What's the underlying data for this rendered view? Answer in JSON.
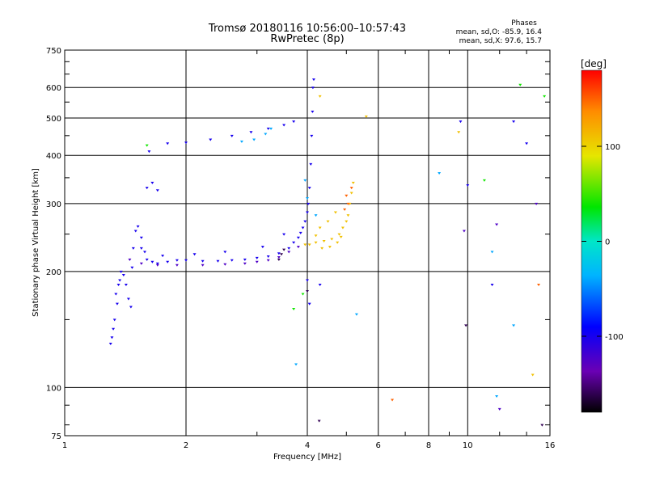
{
  "chart_data": {
    "type": "scatter",
    "title": "Tromsø 20180116 10:56:00–10:57:43",
    "subtitle": "RwPretec (8p)",
    "xlabel": "Frequency [MHz]",
    "ylabel": "Stationary phase Virtual Height [km]",
    "xscale": "log",
    "yscale": "log",
    "xlim": [
      1,
      16
    ],
    "ylim": [
      75,
      750
    ],
    "xticks": [
      1,
      2,
      4,
      6,
      8,
      10,
      16
    ],
    "xtick_labels": [
      "1",
      "2",
      "4",
      "6",
      "8",
      "10",
      "16"
    ],
    "yticks": [
      75,
      100,
      200,
      300,
      400,
      500,
      600,
      750
    ],
    "ytick_labels": [
      "75",
      "100",
      "200",
      "300",
      "400",
      "500",
      "600",
      "750"
    ],
    "grid": true,
    "phases": {
      "heading": "Phases",
      "o_line": "mean, sd,O: -85.9, 16.4",
      "x_line": "mean, sd,X:  97.6, 15.7"
    },
    "colorbar": {
      "label": "[deg]",
      "range": [
        -180,
        180
      ],
      "ticks": [
        -100,
        0,
        100
      ],
      "tick_labels": [
        "-100",
        "0",
        "100"
      ],
      "colormap": "rainbow"
    },
    "series": [
      {
        "phase": -100,
        "points": [
          [
            1.3,
            130
          ],
          [
            1.31,
            135
          ],
          [
            1.32,
            142
          ],
          [
            1.33,
            150
          ],
          [
            1.35,
            165
          ],
          [
            1.34,
            175
          ],
          [
            1.36,
            185
          ],
          [
            1.37,
            190
          ],
          [
            1.38,
            200
          ],
          [
            1.4,
            196
          ],
          [
            1.42,
            185
          ],
          [
            1.44,
            170
          ],
          [
            1.46,
            162
          ],
          [
            1.47,
            205
          ],
          [
            1.48,
            230
          ],
          [
            1.5,
            255
          ],
          [
            1.52,
            262
          ],
          [
            1.55,
            245
          ],
          [
            1.58,
            225
          ],
          [
            1.6,
            215
          ],
          [
            1.65,
            212
          ],
          [
            1.7,
            210
          ],
          [
            1.8,
            212
          ],
          [
            1.9,
            214
          ],
          [
            2.0,
            214
          ],
          [
            2.2,
            213
          ],
          [
            2.4,
            213
          ],
          [
            2.6,
            214
          ],
          [
            2.8,
            215
          ],
          [
            3.0,
            217
          ],
          [
            3.2,
            219
          ],
          [
            3.4,
            223
          ],
          [
            3.6,
            230
          ],
          [
            3.7,
            238
          ],
          [
            3.8,
            245
          ],
          [
            3.85,
            252
          ],
          [
            3.9,
            260
          ],
          [
            3.95,
            270
          ],
          [
            4.0,
            285
          ],
          [
            4.02,
            300
          ],
          [
            4.05,
            330
          ],
          [
            4.08,
            380
          ],
          [
            4.1,
            450
          ],
          [
            4.12,
            520
          ],
          [
            4.13,
            600
          ],
          [
            4.15,
            630
          ],
          [
            1.6,
            330
          ],
          [
            1.65,
            340
          ],
          [
            1.7,
            325
          ],
          [
            1.62,
            410
          ],
          [
            1.8,
            430
          ],
          [
            2.0,
            432
          ],
          [
            2.3,
            440
          ],
          [
            2.6,
            450
          ],
          [
            2.9,
            460
          ],
          [
            3.2,
            470
          ],
          [
            3.5,
            480
          ],
          [
            3.7,
            490
          ],
          [
            1.55,
            230
          ],
          [
            1.75,
            220
          ],
          [
            2.1,
            222
          ],
          [
            2.5,
            225
          ],
          [
            3.1,
            232
          ],
          [
            3.5,
            250
          ],
          [
            4.0,
            190
          ],
          [
            4.05,
            165
          ],
          [
            4.3,
            185
          ],
          [
            9.6,
            490
          ],
          [
            10.0,
            335
          ],
          [
            11.5,
            185
          ],
          [
            13.0,
            490
          ],
          [
            14.0,
            430
          ]
        ]
      },
      {
        "phase": -125,
        "points": [
          [
            1.45,
            215
          ],
          [
            1.55,
            210
          ],
          [
            1.7,
            208
          ],
          [
            1.9,
            208
          ],
          [
            2.2,
            208
          ],
          [
            2.5,
            209
          ],
          [
            2.8,
            210
          ],
          [
            3.0,
            212
          ],
          [
            3.2,
            214
          ],
          [
            3.4,
            218
          ],
          [
            3.6,
            225
          ],
          [
            3.8,
            232
          ],
          [
            9.8,
            255
          ],
          [
            11.8,
            265
          ],
          [
            12.0,
            88
          ],
          [
            14.8,
            300
          ]
        ]
      },
      {
        "phase": -160,
        "points": [
          [
            3.4,
            215
          ],
          [
            3.45,
            222
          ],
          [
            3.5,
            228
          ],
          [
            4.0,
            178
          ],
          [
            4.28,
            82
          ],
          [
            9.9,
            145
          ],
          [
            15.3,
            80
          ]
        ]
      },
      {
        "phase": 110,
        "points": [
          [
            3.95,
            235
          ],
          [
            4.05,
            235
          ],
          [
            4.2,
            238
          ],
          [
            4.4,
            240
          ],
          [
            4.6,
            243
          ],
          [
            4.8,
            250
          ],
          [
            4.9,
            260
          ],
          [
            5.0,
            270
          ],
          [
            5.05,
            280
          ],
          [
            5.1,
            300
          ],
          [
            5.15,
            320
          ],
          [
            5.2,
            340
          ],
          [
            4.3,
            260
          ],
          [
            4.5,
            270
          ],
          [
            4.7,
            285
          ],
          [
            4.2,
            248
          ],
          [
            4.35,
            230
          ],
          [
            4.55,
            232
          ],
          [
            4.75,
            238
          ],
          [
            4.85,
            246
          ],
          [
            14.5,
            108
          ],
          [
            4.3,
            570
          ],
          [
            5.6,
            505
          ],
          [
            9.5,
            460
          ]
        ]
      },
      {
        "phase": 150,
        "points": [
          [
            5.05,
            300
          ],
          [
            5.15,
            330
          ],
          [
            5.0,
            315
          ],
          [
            4.95,
            290
          ],
          [
            6.5,
            93
          ],
          [
            15.0,
            185
          ]
        ]
      },
      {
        "phase": 40,
        "points": [
          [
            1.6,
            425
          ],
          [
            3.7,
            160
          ],
          [
            3.9,
            175
          ],
          [
            13.5,
            610
          ],
          [
            15.5,
            570
          ],
          [
            11.0,
            345
          ]
        ]
      },
      {
        "phase": -40,
        "points": [
          [
            2.75,
            435
          ],
          [
            2.95,
            440
          ],
          [
            3.15,
            455
          ],
          [
            3.25,
            470
          ],
          [
            3.95,
            345
          ],
          [
            4.0,
            310
          ],
          [
            4.2,
            280
          ],
          [
            5.3,
            155
          ],
          [
            8.5,
            360
          ],
          [
            11.5,
            225
          ],
          [
            13.0,
            145
          ],
          [
            11.8,
            95
          ],
          [
            3.75,
            115
          ]
        ]
      }
    ]
  }
}
